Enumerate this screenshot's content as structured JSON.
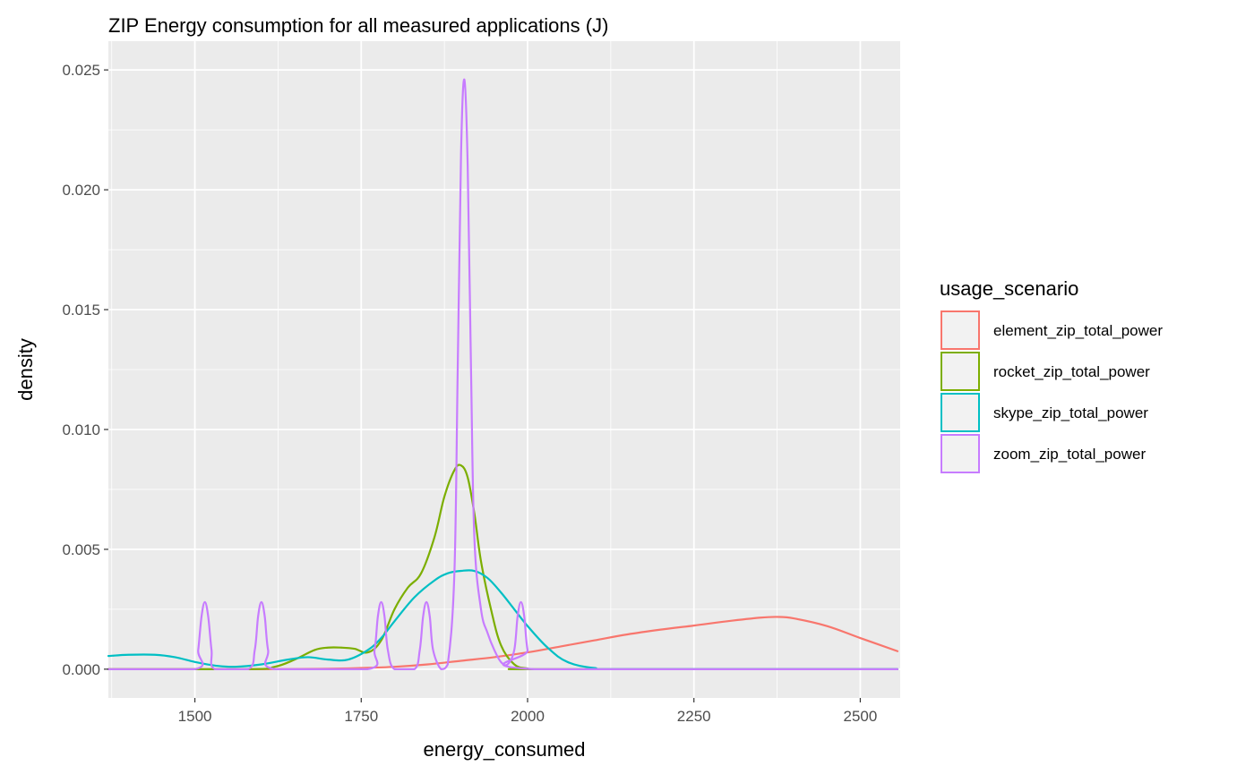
{
  "chart_data": {
    "type": "line",
    "title": "ZIP Energy consumption for all measured applications (J)",
    "xlabel": "energy_consumed",
    "ylabel": "density",
    "xlim": [
      1370,
      2560
    ],
    "ylim": [
      -0.0012,
      0.0262
    ],
    "xticks": [
      1500,
      1750,
      2000,
      2250,
      2500
    ],
    "xtick_labels": [
      "1500",
      "1750",
      "2000",
      "2250",
      "2500"
    ],
    "yticks": [
      0.0,
      0.005,
      0.01,
      0.015,
      0.02,
      0.025
    ],
    "ytick_labels": [
      "0.000",
      "0.005",
      "0.010",
      "0.015",
      "0.020",
      "0.025"
    ],
    "grid": true,
    "legend": {
      "title": "usage_scenario",
      "position": "right"
    },
    "series": [
      {
        "name": "element_zip_total_power",
        "color": "#F8766D",
        "x": [
          1370,
          1600,
          1700,
          1750,
          1800,
          1850,
          1900,
          1950,
          2000,
          2050,
          2100,
          2150,
          2200,
          2250,
          2300,
          2350,
          2375,
          2400,
          2450,
          2500,
          2556
        ],
        "y": [
          0.0,
          0.0,
          2e-05,
          5e-05,
          0.0001,
          0.0002,
          0.00035,
          0.0005,
          0.0007,
          0.00095,
          0.0012,
          0.00145,
          0.00165,
          0.00182,
          0.002,
          0.00215,
          0.00218,
          0.00212,
          0.0018,
          0.0013,
          0.00075
        ]
      },
      {
        "name": "rocket_zip_total_power",
        "color": "#7CAE00",
        "x": [
          1370,
          1580,
          1620,
          1650,
          1680,
          1700,
          1720,
          1740,
          1760,
          1780,
          1800,
          1820,
          1840,
          1860,
          1875,
          1890,
          1900,
          1910,
          1920,
          1930,
          1945,
          1960,
          1980,
          2000,
          2020,
          2556
        ],
        "y": [
          0.0,
          0.0,
          0.0001,
          0.0004,
          0.0008,
          0.0009,
          0.0009,
          0.00085,
          0.0007,
          0.0012,
          0.0025,
          0.0034,
          0.004,
          0.0055,
          0.0072,
          0.0083,
          0.0085,
          0.008,
          0.0065,
          0.0045,
          0.0025,
          0.001,
          0.0002,
          3e-05,
          0.0,
          0.0
        ]
      },
      {
        "name": "skype_zip_total_power",
        "color": "#00BFC4",
        "x": [
          1370,
          1400,
          1440,
          1470,
          1500,
          1530,
          1560,
          1600,
          1640,
          1670,
          1700,
          1730,
          1760,
          1780,
          1800,
          1830,
          1860,
          1880,
          1900,
          1920,
          1940,
          1960,
          1980,
          2000,
          2030,
          2060,
          2100,
          2150,
          2556
        ],
        "y": [
          0.00055,
          0.0006,
          0.0006,
          0.0005,
          0.0003,
          0.00015,
          0.0001,
          0.0002,
          0.0004,
          0.0005,
          0.0004,
          0.0004,
          0.0008,
          0.0013,
          0.002,
          0.003,
          0.0037,
          0.004,
          0.0041,
          0.0041,
          0.0038,
          0.0032,
          0.0025,
          0.0018,
          0.0009,
          0.0003,
          5e-05,
          0.0,
          0.0
        ]
      },
      {
        "name": "zoom_zip_total_power",
        "color": "#C77CFF",
        "x": [
          1370,
          1500,
          1505,
          1510,
          1515,
          1520,
          1525,
          1530,
          1580,
          1590,
          1595,
          1600,
          1605,
          1610,
          1620,
          1760,
          1770,
          1775,
          1780,
          1785,
          1790,
          1800,
          1830,
          1838,
          1843,
          1848,
          1853,
          1858,
          1870,
          1880,
          1890,
          1895,
          1900,
          1905,
          1910,
          1915,
          1920,
          1930,
          1940,
          1950,
          1960,
          1970,
          1980,
          1985,
          1990,
          1995,
          2000,
          2010,
          2556
        ],
        "y": [
          0.0,
          0.0,
          0.0008,
          0.0022,
          0.0028,
          0.0022,
          0.0008,
          0.0,
          0.0,
          0.0008,
          0.0022,
          0.0028,
          0.0022,
          0.0008,
          0.0,
          0.0,
          0.0008,
          0.0022,
          0.0028,
          0.0022,
          0.0008,
          0.0,
          0.0,
          0.0008,
          0.0022,
          0.0028,
          0.0022,
          0.0008,
          0.0,
          0.0002,
          0.004,
          0.0125,
          0.0215,
          0.0246,
          0.021,
          0.0125,
          0.0055,
          0.0025,
          0.0015,
          0.0008,
          0.0003,
          0.0002,
          0.0008,
          0.0022,
          0.0028,
          0.0022,
          0.0008,
          0.0,
          0.0
        ]
      }
    ]
  }
}
